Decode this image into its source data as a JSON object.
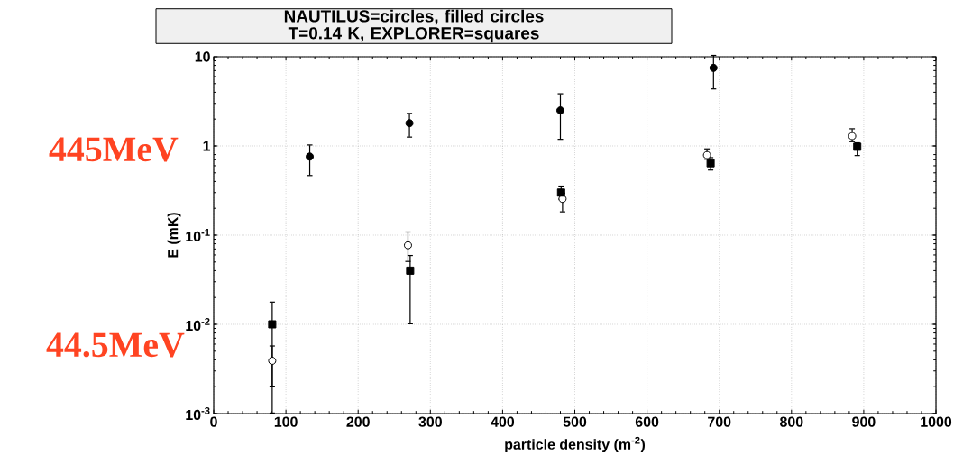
{
  "chart_data": {
    "type": "scatter",
    "title": "NAUTILUS=circles, filled circles T=0.14 K, EXPLORER=squares",
    "xlabel": "particle density (m$^{-2}$)",
    "ylabel": "E (mK)",
    "annotations": [
      "445MeV",
      "44.5MeV"
    ],
    "series": [
      {
        "color": "#000000",
        "marker": "circle",
        "x": [
          133,
          271,
          480,
          692
        ],
        "values": [
          0.76,
          1.8,
          2.5,
          7.5
        ],
        "errors": [
          [
            0.46,
            1.04
          ],
          [
            1.24,
            2.35
          ],
          [
            1.17,
            3.9
          ],
          [
            4.3,
            10.5
          ]
        ]
      },
      {
        "color": "#ffffff",
        "marker": "circle",
        "x": [
          81,
          269,
          483,
          683,
          884
        ],
        "values": [
          0.0039,
          0.077,
          0.255,
          0.79,
          1.29
        ],
        "errors": [
          [
            0.002,
            0.0058
          ],
          [
            0.05,
            0.11
          ],
          [
            0.18,
            0.3
          ],
          [
            0.7,
            0.94
          ],
          [
            1.1,
            1.58
          ]
        ]
      },
      {
        "color": "#000000",
        "marker": "square",
        "x": [
          81,
          272,
          481,
          688,
          891
        ],
        "values": [
          0.01,
          0.04,
          0.3,
          0.64,
          0.98
        ],
        "errors": [
          [
            0.001,
            0.018
          ],
          [
            0.01,
            0.06
          ],
          [
            0.25,
            0.36
          ],
          [
            0.53,
            0.75
          ],
          [
            0.77,
            1.1
          ]
        ]
      }
    ],
    "log": "y",
    "grid": true,
    "xlim": [
      0,
      1000
    ],
    "xticks": [
      0,
      100,
      200,
      300,
      400,
      500,
      600,
      700,
      800,
      900,
      1000
    ],
    "ylim": [
      0.001,
      10
    ],
    "yticks": [
      {
        "value": 0.001,
        "label": "10$^{-3}$"
      },
      {
        "value": 0.01,
        "label": "10$^{-2}$"
      },
      {
        "value": 0.1,
        "label": "10$^{-1}$"
      },
      {
        "value": 1,
        "label": "1"
      },
      {
        "value": 10,
        "label": "10"
      }
    ]
  }
}
